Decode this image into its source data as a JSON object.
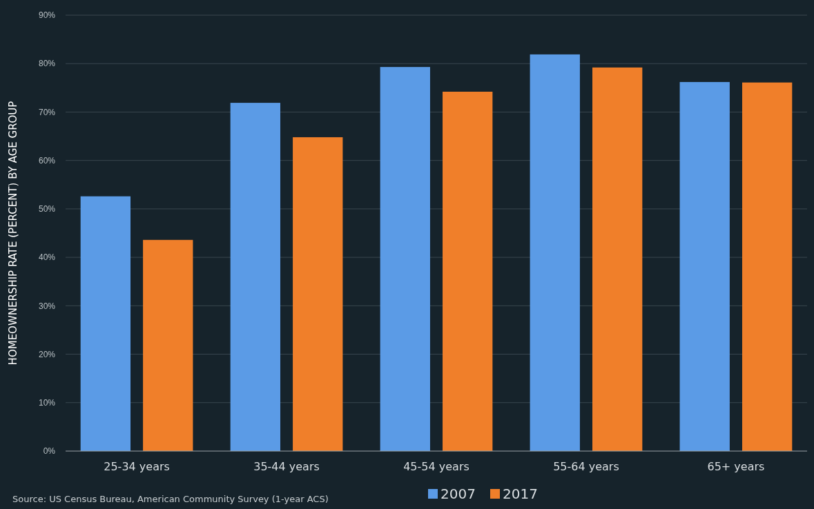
{
  "chart_data": {
    "type": "bar",
    "ylabel": "HOMEOWNERSHIP RATE (PERCENT) BY AGE GROUP",
    "categories": [
      "25-34 years",
      "35-44 years",
      "45-54 years",
      "55-64 years",
      "65+ years"
    ],
    "series": [
      {
        "name": "2007",
        "color": "#5b9be6",
        "values": [
          52.6,
          71.9,
          79.3,
          81.9,
          76.2
        ]
      },
      {
        "name": "2017",
        "color": "#f07f2a",
        "values": [
          43.6,
          64.8,
          74.2,
          79.2,
          76.1
        ]
      }
    ],
    "ylim": [
      0,
      90
    ],
    "yticks": [
      {
        "value": 0,
        "label": "0%"
      },
      {
        "value": 10,
        "label": "10%"
      },
      {
        "value": 20,
        "label": "20%"
      },
      {
        "value": 30,
        "label": "30%"
      },
      {
        "value": 40,
        "label": "40%"
      },
      {
        "value": 50,
        "label": "50%"
      },
      {
        "value": 60,
        "label": "60%"
      },
      {
        "value": 70,
        "label": "70%"
      },
      {
        "value": 80,
        "label": "80%"
      },
      {
        "value": 90,
        "label": "90%"
      }
    ],
    "grid": "y",
    "legend": "bottom",
    "annotations": [
      "Source: US Census Bureau, American Community Survey (1-year ACS)"
    ]
  }
}
